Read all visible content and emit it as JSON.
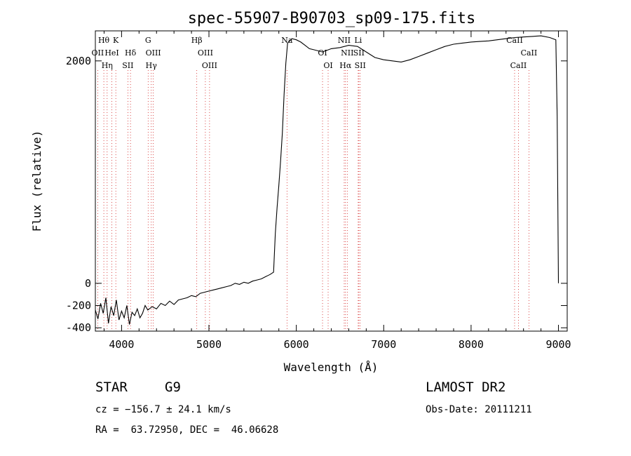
{
  "chart_data": {
    "type": "line",
    "title": "spec-55907-B90703_sp09-175.fits",
    "xlabel": "Wavelength (Å)",
    "ylabel": "Flux (relative)",
    "xlim": [
      3700,
      9100
    ],
    "ylim": [
      -430,
      2270
    ],
    "x_ticks": [
      4000,
      5000,
      6000,
      7000,
      8000,
      9000
    ],
    "y_ticks": [
      -400,
      -200,
      0,
      2000
    ],
    "grid": false,
    "series": [
      {
        "x": [
          3700,
          3730,
          3760,
          3790,
          3820,
          3850,
          3880,
          3910,
          3940,
          3970,
          4000,
          4030,
          4060,
          4090,
          4120,
          4150,
          4180,
          4210,
          4240,
          4270,
          4300,
          4350,
          4400,
          4450,
          4500,
          4550,
          4600,
          4650,
          4700,
          4750,
          4800,
          4850,
          4900,
          4950,
          5000,
          5050,
          5100,
          5150,
          5200,
          5250,
          5300,
          5350,
          5400,
          5450,
          5500,
          5550,
          5600,
          5650,
          5700,
          5740,
          5760,
          5780,
          5800,
          5820,
          5840,
          5860,
          5880,
          5900,
          5950,
          6000,
          6050,
          6100,
          6150,
          6200,
          6300,
          6400,
          6500,
          6600,
          6700,
          6800,
          6900,
          7000,
          7100,
          7200,
          7300,
          7400,
          7500,
          7600,
          7700,
          7800,
          7900,
          8000,
          8100,
          8200,
          8300,
          8400,
          8500,
          8600,
          8700,
          8800,
          8900,
          8970,
          8985,
          9000
        ],
        "y": [
          -240,
          -320,
          -180,
          -270,
          -130,
          -360,
          -210,
          -290,
          -150,
          -330,
          -250,
          -310,
          -200,
          -370,
          -260,
          -290,
          -230,
          -310,
          -270,
          -200,
          -240,
          -210,
          -230,
          -180,
          -200,
          -160,
          -190,
          -150,
          -140,
          -130,
          -110,
          -120,
          -90,
          -80,
          -70,
          -60,
          -50,
          -40,
          -30,
          -20,
          0,
          -10,
          10,
          0,
          20,
          30,
          40,
          60,
          80,
          100,
          450,
          680,
          880,
          1100,
          1350,
          1700,
          1980,
          2160,
          2200,
          2190,
          2170,
          2140,
          2110,
          2100,
          2080,
          2110,
          2120,
          2140,
          2130,
          2080,
          2030,
          2010,
          2000,
          1990,
          2010,
          2040,
          2070,
          2100,
          2130,
          2150,
          2160,
          2170,
          2175,
          2180,
          2190,
          2200,
          2210,
          2215,
          2220,
          2225,
          2210,
          2190,
          1500,
          0
        ]
      }
    ],
    "spectral_lines": [
      {
        "label": "Hθ",
        "x": 3797,
        "row": 0
      },
      {
        "label": "K",
        "x": 3934,
        "row": 0
      },
      {
        "label": "G",
        "x": 4304,
        "row": 0
      },
      {
        "label": "Hβ",
        "x": 4861,
        "row": 0
      },
      {
        "label": "Na",
        "x": 5893,
        "row": 0
      },
      {
        "label": "NII",
        "x": 6548,
        "row": 0
      },
      {
        "label": "Li",
        "x": 6708,
        "row": 0
      },
      {
        "label": "CaII",
        "x": 8498,
        "row": 0
      },
      {
        "label": "OII",
        "x": 3727,
        "row": 1
      },
      {
        "label": "HeI",
        "x": 3889,
        "row": 1
      },
      {
        "label": "Hδ",
        "x": 4102,
        "row": 1
      },
      {
        "label": "OIII",
        "x": 4363,
        "row": 1
      },
      {
        "label": "OIII",
        "x": 4959,
        "row": 1
      },
      {
        "label": "OI",
        "x": 6300,
        "row": 1
      },
      {
        "label": "NII",
        "x": 6583,
        "row": 1
      },
      {
        "label": "SII",
        "x": 6716,
        "row": 1
      },
      {
        "label": "CaII",
        "x": 8662,
        "row": 1
      },
      {
        "label": "Hη",
        "x": 3835,
        "row": 2
      },
      {
        "label": "SII",
        "x": 4072,
        "row": 2
      },
      {
        "label": "Hγ",
        "x": 4340,
        "row": 2
      },
      {
        "label": "OIII",
        "x": 5007,
        "row": 2
      },
      {
        "label": "OI",
        "x": 6364,
        "row": 2
      },
      {
        "label": "Hα",
        "x": 6563,
        "row": 2
      },
      {
        "label": "SII",
        "x": 6731,
        "row": 2
      },
      {
        "label": "CaII",
        "x": 8542,
        "row": 2
      }
    ]
  },
  "footer": {
    "object_type": "STAR",
    "subclass": "G9",
    "survey": "LAMOST DR2",
    "redshift": "cz = −156.7 ± 24.1 km/s",
    "obs_date": "Obs-Date: 20111211",
    "coords": "RA =  63.72950, DEC =  46.06628"
  }
}
